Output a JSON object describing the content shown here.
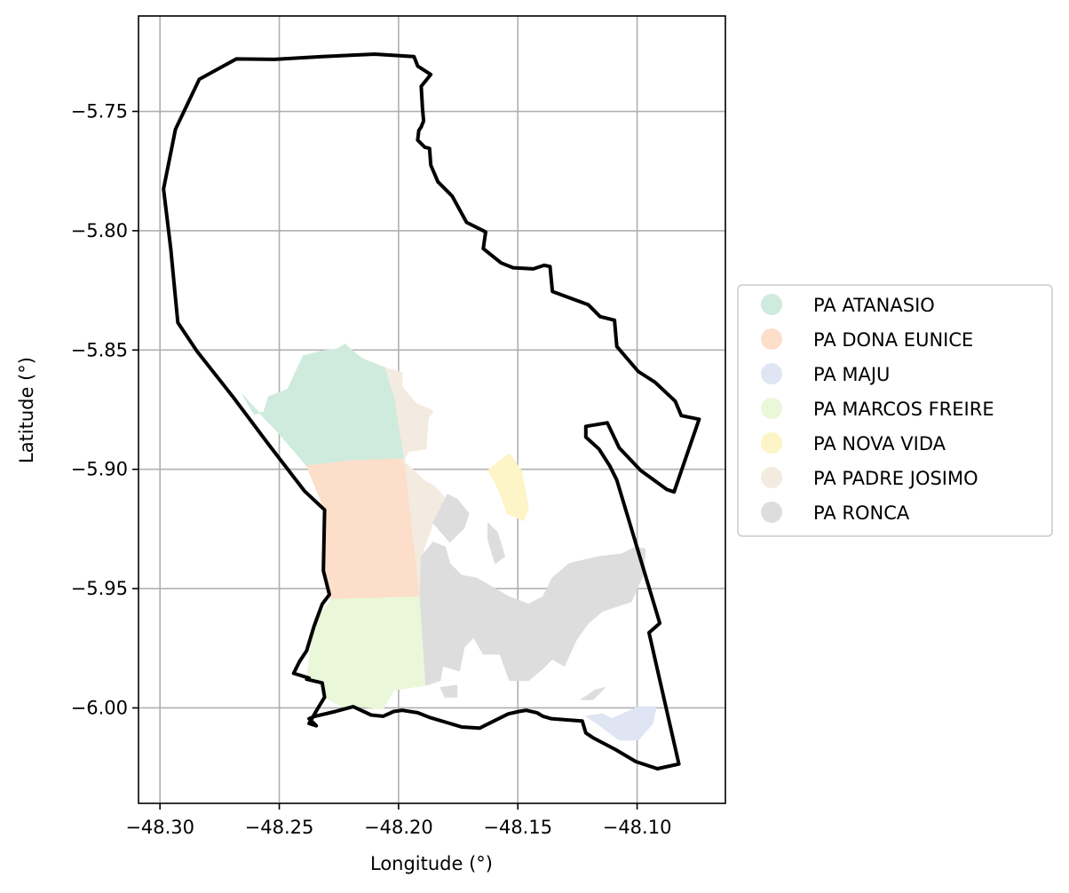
{
  "chart_data": {
    "type": "map",
    "xlabel": "Longitude (°)",
    "ylabel": "Latitude (°)",
    "xlim": [
      -48.309,
      -48.063
    ],
    "ylim": [
      -6.04,
      -5.71
    ],
    "grid": true,
    "legend_position": "right",
    "x_ticks": [
      {
        "value": -48.3,
        "label": "−48.30"
      },
      {
        "value": -48.25,
        "label": "−48.25"
      },
      {
        "value": -48.2,
        "label": "−48.20"
      },
      {
        "value": -48.15,
        "label": "−48.15"
      },
      {
        "value": -48.1,
        "label": "−48.10"
      }
    ],
    "y_ticks": [
      {
        "value": -5.75,
        "label": "−5.75"
      },
      {
        "value": -5.8,
        "label": "−5.80"
      },
      {
        "value": -5.85,
        "label": "−5.85"
      },
      {
        "value": -5.9,
        "label": "−5.90"
      },
      {
        "value": -5.95,
        "label": "−5.95"
      },
      {
        "value": -6.0,
        "label": "−6.00"
      }
    ],
    "boundary": {
      "color": "#000000",
      "coords": [
        [
          -48.268,
          -5.728
        ],
        [
          -48.252,
          -5.7282
        ],
        [
          -48.232,
          -5.727
        ],
        [
          -48.21,
          -5.726
        ],
        [
          -48.1935,
          -5.727
        ],
        [
          -48.192,
          -5.731
        ],
        [
          -48.1865,
          -5.7345
        ],
        [
          -48.1905,
          -5.7395
        ],
        [
          -48.19,
          -5.7485
        ],
        [
          -48.1895,
          -5.754
        ],
        [
          -48.1905,
          -5.7565
        ],
        [
          -48.1915,
          -5.758
        ],
        [
          -48.192,
          -5.762
        ],
        [
          -48.189,
          -5.765
        ],
        [
          -48.187,
          -5.7655
        ],
        [
          -48.1865,
          -5.7725
        ],
        [
          -48.1835,
          -5.7795
        ],
        [
          -48.1775,
          -5.7855
        ],
        [
          -48.1715,
          -5.7965
        ],
        [
          -48.1635,
          -5.8005
        ],
        [
          -48.1645,
          -5.8075
        ],
        [
          -48.157,
          -5.8135
        ],
        [
          -48.152,
          -5.8155
        ],
        [
          -48.1435,
          -5.816
        ],
        [
          -48.139,
          -5.8145
        ],
        [
          -48.1365,
          -5.815
        ],
        [
          -48.1355,
          -5.8255
        ],
        [
          -48.1205,
          -5.831
        ],
        [
          -48.1155,
          -5.836
        ],
        [
          -48.1095,
          -5.8375
        ],
        [
          -48.1085,
          -5.8485
        ],
        [
          -48.0995,
          -5.859
        ],
        [
          -48.0925,
          -5.8635
        ],
        [
          -48.084,
          -5.8715
        ],
        [
          -48.0815,
          -5.8775
        ],
        [
          -48.074,
          -5.879
        ],
        [
          -48.0845,
          -5.9095
        ],
        [
          -48.0875,
          -5.9085
        ],
        [
          -48.0985,
          -5.9005
        ],
        [
          -48.1075,
          -5.891
        ],
        [
          -48.1125,
          -5.8805
        ],
        [
          -48.1215,
          -5.882
        ],
        [
          -48.1215,
          -5.8865
        ],
        [
          -48.116,
          -5.8915
        ],
        [
          -48.1115,
          -5.8985
        ],
        [
          -48.1085,
          -5.9045
        ],
        [
          -48.0905,
          -5.9645
        ],
        [
          -48.095,
          -5.9685
        ],
        [
          -48.0825,
          -6.0235
        ],
        [
          -48.0915,
          -6.0255
        ],
        [
          -48.1005,
          -6.0225
        ],
        [
          -48.109,
          -6.0175
        ],
        [
          -48.1185,
          -6.0125
        ],
        [
          -48.1215,
          -6.0105
        ],
        [
          -48.123,
          -6.0055
        ],
        [
          -48.136,
          -6.0045
        ],
        [
          -48.1395,
          -6.0035
        ],
        [
          -48.142,
          -6.002
        ],
        [
          -48.1465,
          -6.001
        ],
        [
          -48.1495,
          -6.0015
        ],
        [
          -48.154,
          -6.0025
        ],
        [
          -48.164,
          -6.0075
        ],
        [
          -48.166,
          -6.0085
        ],
        [
          -48.1735,
          -6.008
        ],
        [
          -48.1785,
          -6.0065
        ],
        [
          -48.187,
          -6.004
        ],
        [
          -48.192,
          -6.002
        ],
        [
          -48.1985,
          -6.001
        ],
        [
          -48.202,
          -6.0015
        ],
        [
          -48.2065,
          -6.0035
        ],
        [
          -48.2115,
          -6.003
        ],
        [
          -48.219,
          -5.9995
        ],
        [
          -48.2265,
          -6.0015
        ],
        [
          -48.235,
          -6.0035
        ],
        [
          -48.2375,
          -6.0045
        ],
        [
          -48.2345,
          -6.0075
        ],
        [
          -48.2375,
          -6.0065
        ],
        [
          -48.234,
          -6.0005
        ],
        [
          -48.231,
          -5.9955
        ],
        [
          -48.232,
          -5.9895
        ],
        [
          -48.2385,
          -5.988
        ],
        [
          -48.2375,
          -5.9875
        ],
        [
          -48.244,
          -5.9855
        ],
        [
          -48.2415,
          -5.9805
        ],
        [
          -48.2385,
          -5.976
        ],
        [
          -48.2355,
          -5.966
        ],
        [
          -48.232,
          -5.9565
        ],
        [
          -48.229,
          -5.9525
        ],
        [
          -48.2315,
          -5.9425
        ],
        [
          -48.231,
          -5.917
        ],
        [
          -48.2395,
          -5.909
        ],
        [
          -48.2545,
          -5.8895
        ],
        [
          -48.2695,
          -5.8695
        ],
        [
          -48.2845,
          -5.8505
        ],
        [
          -48.2925,
          -5.8385
        ],
        [
          -48.2955,
          -5.8075
        ],
        [
          -48.2985,
          -5.7825
        ],
        [
          -48.2935,
          -5.7575
        ],
        [
          -48.2835,
          -5.7365
        ],
        [
          -48.268,
          -5.728
        ]
      ]
    },
    "parcels": [
      {
        "name": "PA ATANASIO",
        "color": "#cfebde",
        "polygons": [
          [
            [
              -48.2225,
              -5.8475
            ],
            [
              -48.2255,
              -5.8495
            ],
            [
              -48.2325,
              -5.8505
            ],
            [
              -48.24,
              -5.8525
            ],
            [
              -48.2465,
              -5.8665
            ],
            [
              -48.2545,
              -5.8695
            ],
            [
              -48.2565,
              -5.876
            ],
            [
              -48.2605,
              -5.877
            ],
            [
              -48.2655,
              -5.8685
            ],
            [
              -48.2625,
              -5.872
            ],
            [
              -48.2505,
              -5.8845
            ],
            [
              -48.2385,
              -5.8985
            ],
            [
              -48.2205,
              -5.8965
            ],
            [
              -48.1975,
              -5.8955
            ],
            [
              -48.2015,
              -5.8705
            ],
            [
              -48.2055,
              -5.8575
            ],
            [
              -48.2155,
              -5.8535
            ],
            [
              -48.2225,
              -5.8475
            ]
          ]
        ]
      },
      {
        "name": "PA DONA EUNICE",
        "color": "#fcdecb",
        "polygons": [
          [
            [
              -48.2385,
              -5.8985
            ],
            [
              -48.2205,
              -5.8965
            ],
            [
              -48.1975,
              -5.8955
            ],
            [
              -48.191,
              -5.9535
            ],
            [
              -48.2285,
              -5.9545
            ],
            [
              -48.2315,
              -5.9425
            ],
            [
              -48.231,
              -5.917
            ],
            [
              -48.2385,
              -5.8985
            ]
          ]
        ]
      },
      {
        "name": "PA MAJU",
        "color": "#dfe5f3",
        "polygons": [
          [
            [
              -48.1215,
              -6.0035
            ],
            [
              -48.1145,
              -6.0025
            ],
            [
              -48.1105,
              -6.0045
            ],
            [
              -48.0995,
              -5.9995
            ],
            [
              -48.092,
              -5.9995
            ],
            [
              -48.0935,
              -6.0065
            ],
            [
              -48.0995,
              -6.0135
            ],
            [
              -48.1075,
              -6.0135
            ],
            [
              -48.1155,
              -6.0075
            ],
            [
              -48.1215,
              -6.0035
            ]
          ]
        ]
      },
      {
        "name": "PA MARCOS FREIRE",
        "color": "#eaf7d9",
        "polygons": [
          [
            [
              -48.2285,
              -5.9545
            ],
            [
              -48.191,
              -5.9535
            ],
            [
              -48.1885,
              -5.9905
            ],
            [
              -48.202,
              -5.9925
            ],
            [
              -48.2065,
              -6.0005
            ],
            [
              -48.2145,
              -5.9995
            ],
            [
              -48.2235,
              -5.9995
            ],
            [
              -48.231,
              -5.9955
            ],
            [
              -48.232,
              -5.9895
            ],
            [
              -48.2385,
              -5.988
            ],
            [
              -48.2355,
              -5.966
            ],
            [
              -48.2285,
              -5.9545
            ]
          ]
        ]
      },
      {
        "name": "PA NOVA VIDA",
        "color": "#fdf4c7",
        "polygons": [
          [
            [
              -48.1535,
              -5.8935
            ],
            [
              -48.1575,
              -5.8965
            ],
            [
              -48.1625,
              -5.9005
            ],
            [
              -48.1595,
              -5.9055
            ],
            [
              -48.1565,
              -5.9125
            ],
            [
              -48.1545,
              -5.9185
            ],
            [
              -48.1475,
              -5.9215
            ],
            [
              -48.1455,
              -5.9165
            ],
            [
              -48.1475,
              -5.9055
            ],
            [
              -48.1485,
              -5.9005
            ],
            [
              -48.1535,
              -5.8935
            ]
          ]
        ]
      },
      {
        "name": "PA PADRE JOSIMO",
        "color": "#f3ebdf",
        "polygons": [
          [
            [
              -48.2055,
              -5.8575
            ],
            [
              -48.2015,
              -5.8705
            ],
            [
              -48.1975,
              -5.8955
            ],
            [
              -48.191,
              -5.9535
            ],
            [
              -48.1905,
              -5.9365
            ],
            [
              -48.1855,
              -5.9225
            ],
            [
              -48.1795,
              -5.9105
            ],
            [
              -48.1725,
              -5.9185
            ],
            [
              -48.1775,
              -5.9155
            ],
            [
              -48.1845,
              -5.9075
            ],
            [
              -48.1895,
              -5.9045
            ],
            [
              -48.1935,
              -5.9005
            ],
            [
              -48.1985,
              -5.8965
            ],
            [
              -48.1955,
              -5.8925
            ],
            [
              -48.1885,
              -5.8915
            ],
            [
              -48.1875,
              -5.8785
            ],
            [
              -48.1855,
              -5.8755
            ],
            [
              -48.1925,
              -5.8725
            ],
            [
              -48.1985,
              -5.8655
            ],
            [
              -48.1985,
              -5.8595
            ],
            [
              -48.2055,
              -5.8575
            ]
          ]
        ]
      },
      {
        "name": "PA RONCA",
        "color": "#dddddd",
        "polygons": [
          [
            [
              -48.191,
              -5.9535
            ],
            [
              -48.1885,
              -5.9905
            ],
            [
              -48.1825,
              -5.9885
            ],
            [
              -48.1815,
              -5.9825
            ],
            [
              -48.1745,
              -5.9845
            ],
            [
              -48.1725,
              -5.9745
            ],
            [
              -48.1685,
              -5.9705
            ],
            [
              -48.1645,
              -5.9775
            ],
            [
              -48.1575,
              -5.9775
            ],
            [
              -48.1535,
              -5.9885
            ],
            [
              -48.1455,
              -5.9885
            ],
            [
              -48.1395,
              -5.9835
            ],
            [
              -48.1355,
              -5.9795
            ],
            [
              -48.1305,
              -5.9825
            ],
            [
              -48.1255,
              -5.9715
            ],
            [
              -48.1205,
              -5.9645
            ],
            [
              -48.1145,
              -5.9595
            ],
            [
              -48.1085,
              -5.9575
            ],
            [
              -48.1025,
              -5.9555
            ],
            [
              -48.0975,
              -5.9445
            ],
            [
              -48.0965,
              -5.9335
            ],
            [
              -48.1005,
              -5.9325
            ],
            [
              -48.1065,
              -5.9355
            ],
            [
              -48.1155,
              -5.9365
            ],
            [
              -48.1245,
              -5.9385
            ],
            [
              -48.1285,
              -5.9395
            ],
            [
              -48.1355,
              -5.9455
            ],
            [
              -48.1395,
              -5.9535
            ],
            [
              -48.1455,
              -5.9565
            ],
            [
              -48.1535,
              -5.9535
            ],
            [
              -48.1605,
              -5.9495
            ],
            [
              -48.1675,
              -5.9455
            ],
            [
              -48.1735,
              -5.9445
            ],
            [
              -48.1785,
              -5.9395
            ],
            [
              -48.1805,
              -5.9325
            ],
            [
              -48.1855,
              -5.9305
            ],
            [
              -48.1905,
              -5.9365
            ],
            [
              -48.191,
              -5.9535
            ]
          ],
          [
            [
              -48.1855,
              -5.9225
            ],
            [
              -48.1795,
              -5.9105
            ],
            [
              -48.1755,
              -5.9125
            ],
            [
              -48.1705,
              -5.9185
            ],
            [
              -48.1725,
              -5.9245
            ],
            [
              -48.1785,
              -5.9305
            ],
            [
              -48.1855,
              -5.9225
            ]
          ],
          [
            [
              -48.1625,
              -5.9225
            ],
            [
              -48.1585,
              -5.9265
            ],
            [
              -48.1555,
              -5.9365
            ],
            [
              -48.1595,
              -5.9395
            ],
            [
              -48.1625,
              -5.9295
            ],
            [
              -48.1625,
              -5.9225
            ]
          ],
          [
            [
              -48.1135,
              -5.9915
            ],
            [
              -48.1185,
              -5.9965
            ],
            [
              -48.1235,
              -5.9965
            ],
            [
              -48.1175,
              -5.9925
            ],
            [
              -48.1135,
              -5.9915
            ]
          ],
          [
            [
              -48.1805,
              -5.9955
            ],
            [
              -48.1755,
              -5.9955
            ],
            [
              -48.1755,
              -5.9905
            ],
            [
              -48.1825,
              -5.9915
            ],
            [
              -48.1805,
              -5.9955
            ]
          ]
        ]
      }
    ]
  }
}
